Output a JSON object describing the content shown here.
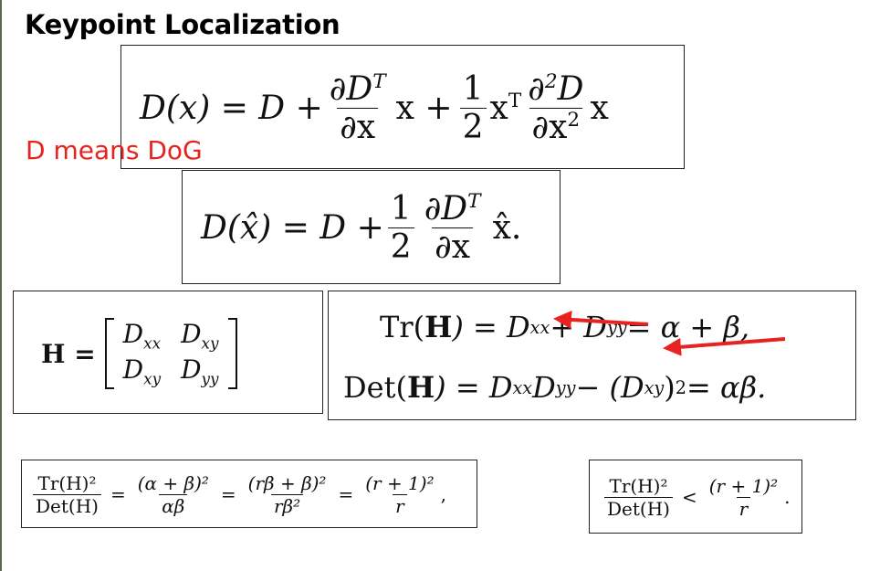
{
  "title": "Keypoint Localization",
  "note": "D means DoG",
  "eq1": {
    "lhs": "D(x) = D +",
    "num1": "∂D",
    "num1_sup": "T",
    "den1": "∂x",
    "mid": "x +",
    "num2": "1",
    "den2": "2",
    "x": "x",
    "xsup": "T",
    "num3": "∂",
    "num3_sup": "2",
    "num3b": "D",
    "den3": "∂x",
    "den3_sup": "2",
    "tail": "x"
  },
  "eq2": {
    "lhs": "D(x̂) = D +",
    "num1": "1",
    "den1": "2",
    "num2": "∂D",
    "num2_sup": "T",
    "den2": "∂x",
    "tail": "x̂."
  },
  "eq3": {
    "lhs": "H =",
    "m11": "D",
    "m11s": "xx",
    "m12": "D",
    "m12s": "xy",
    "m21": "D",
    "m21s": "xy",
    "m22": "D",
    "m22s": "yy"
  },
  "eq4": {
    "line1": {
      "a": "Tr(",
      "h": "H",
      "b": ") = D",
      "s1": "xx",
      "c": " + D",
      "s2": "yy",
      "d": " = α + β,"
    },
    "line2": {
      "a": "Det(",
      "h": "H",
      "b": ") = D",
      "s1": "xx",
      "c": "D",
      "s2": "yy",
      "d": " − (D",
      "s3": "xy",
      "e": ")",
      "sup": "2",
      "f": " = αβ."
    }
  },
  "eq5": {
    "f1n": "Tr(H)²",
    "f1d": "Det(H)",
    "eq": "=",
    "f2n": "(α + β)²",
    "f2d": "αβ",
    "f3n": "(rβ + β)²",
    "f3d": "rβ²",
    "f4n": "(r + 1)²",
    "f4d": "r",
    "end": ","
  },
  "eq6": {
    "f1n": "Tr(H)²",
    "f1d": "Det(H)",
    "lt": "<",
    "f2n": "(r + 1)²",
    "f2d": "r",
    "end": "."
  },
  "colors": {
    "note": "#e8221e",
    "arrow": "#e8221e"
  }
}
